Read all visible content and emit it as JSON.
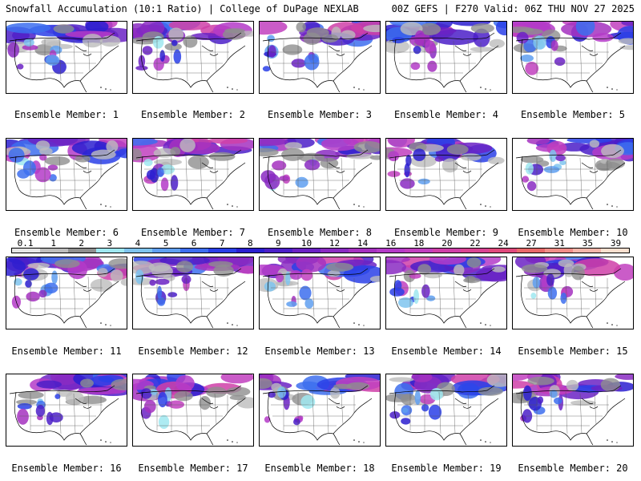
{
  "header": {
    "title_left": "Snowfall Accumulation (10:1 Ratio) | College of DuPage NEXLAB",
    "title_right": "00Z GEFS | F270 Valid: 06Z THU NOV 27 2025"
  },
  "colorbar": {
    "labels": [
      "0.1",
      "1",
      "2",
      "3",
      "4",
      "5",
      "6",
      "7",
      "8",
      "9",
      "10",
      "12",
      "14",
      "16",
      "18",
      "20",
      "22",
      "24",
      "27",
      "31",
      "35",
      "39"
    ],
    "colors": [
      "#e6e6e6",
      "#bdbdbd",
      "#8f8f8f",
      "#9fe8f0",
      "#7fc4ee",
      "#5f9ff0",
      "#3d6eef",
      "#2a3fe8",
      "#2b1fd0",
      "#4b1fc8",
      "#6b22c4",
      "#8a2bc2",
      "#a531c0",
      "#b43bc8",
      "#c13fbe",
      "#cf3fa8",
      "#d94392",
      "#e04a7c",
      "#e86a6a",
      "#f08e88",
      "#f5b6aa",
      "#fbe0cf"
    ]
  },
  "panels": [
    {
      "label": "Ensemble Member: 1"
    },
    {
      "label": "Ensemble Member: 2"
    },
    {
      "label": "Ensemble Member: 3"
    },
    {
      "label": "Ensemble Member: 4"
    },
    {
      "label": "Ensemble Member: 5"
    },
    {
      "label": "Ensemble Member: 6"
    },
    {
      "label": "Ensemble Member: 7"
    },
    {
      "label": "Ensemble Member: 8"
    },
    {
      "label": "Ensemble Member: 9"
    },
    {
      "label": "Ensemble Member: 10"
    },
    {
      "label": "Ensemble Member: 11"
    },
    {
      "label": "Ensemble Member: 12"
    },
    {
      "label": "Ensemble Member: 13"
    },
    {
      "label": "Ensemble Member: 14"
    },
    {
      "label": "Ensemble Member: 15"
    },
    {
      "label": "Ensemble Member: 16"
    },
    {
      "label": "Ensemble Member: 17"
    },
    {
      "label": "Ensemble Member: 18"
    },
    {
      "label": "Ensemble Member: 19"
    },
    {
      "label": "Ensemble Member: 20"
    }
  ]
}
